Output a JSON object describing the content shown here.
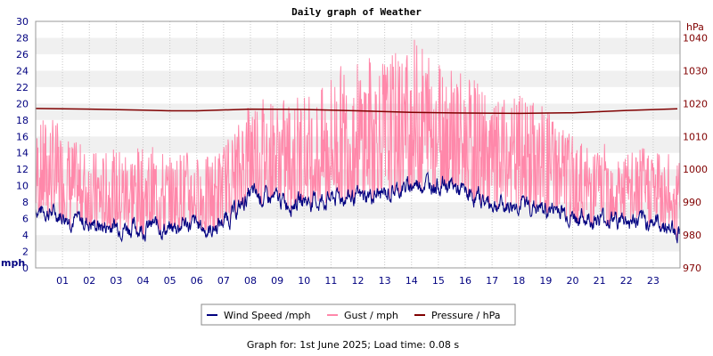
{
  "chart_data": {
    "type": "line",
    "title": "Daily graph of Weather",
    "footer": "Graph for: 1st June 2025; Load time: 0.08 s",
    "left_unit": "mph",
    "right_unit": "hPa",
    "xlim": [
      0,
      24
    ],
    "x_tick_labels": [
      "01",
      "02",
      "03",
      "04",
      "05",
      "06",
      "07",
      "08",
      "09",
      "10",
      "11",
      "12",
      "13",
      "14",
      "15",
      "16",
      "17",
      "18",
      "19",
      "20",
      "21",
      "22",
      "23"
    ],
    "ylim_left": [
      0,
      30
    ],
    "y_left_ticks": [
      0,
      2,
      4,
      6,
      8,
      10,
      12,
      14,
      16,
      18,
      20,
      22,
      24,
      26,
      28,
      30
    ],
    "ylim_right": [
      970,
      1045
    ],
    "y_right_ticks": [
      970,
      980,
      990,
      1000,
      1010,
      1020,
      1030,
      1040
    ],
    "grid": true,
    "legend_position": "bottom",
    "colors": {
      "wind": "#000080",
      "gust": "#ff88aa",
      "pressure": "#800000",
      "band": "#f0f0f0"
    },
    "series": [
      {
        "name": "Wind Speed /mph",
        "axis": "left",
        "x": [
          0,
          0.5,
          1,
          1.5,
          2,
          2.5,
          3,
          3.5,
          4,
          4.5,
          5,
          5.5,
          6,
          6.5,
          7,
          7.5,
          8,
          8.5,
          9,
          9.5,
          10,
          10.5,
          11,
          11.5,
          12,
          12.5,
          13,
          13.5,
          14,
          14.5,
          15,
          15.5,
          16,
          16.5,
          17,
          17.5,
          18,
          18.5,
          19,
          19.5,
          20,
          20.5,
          21,
          21.5,
          22,
          22.5,
          23,
          23.5,
          23.9
        ],
        "values": [
          7.2,
          6.8,
          6.5,
          5.8,
          5.5,
          5.0,
          5.2,
          5.0,
          4.8,
          5.2,
          4.5,
          5.5,
          5.2,
          4.5,
          5.8,
          7.0,
          9.0,
          8.5,
          8.3,
          8.0,
          8.3,
          8.0,
          8.5,
          8.7,
          8.5,
          8.8,
          9.0,
          9.5,
          10.0,
          10.5,
          10.2,
          10.0,
          9.0,
          8.5,
          7.8,
          7.5,
          7.8,
          7.5,
          7.0,
          7.2,
          6.2,
          6.0,
          6.0,
          6.0,
          5.8,
          5.5,
          5.8,
          5.0,
          4.5
        ]
      },
      {
        "name": "Gust / mph",
        "axis": "left",
        "x": [
          0,
          0.5,
          1,
          1.5,
          2,
          2.5,
          3,
          3.5,
          4,
          4.5,
          5,
          5.5,
          6,
          6.5,
          7,
          7.5,
          8,
          8.5,
          9,
          9.5,
          10,
          10.5,
          11,
          11.5,
          12,
          12.5,
          13,
          13.5,
          14,
          14.5,
          15,
          15.5,
          16,
          16.5,
          17,
          17.5,
          18,
          18.5,
          19,
          19.5,
          20,
          20.5,
          21,
          21.5,
          22,
          22.5,
          23,
          23.5,
          23.9
        ],
        "values": [
          11.0,
          11.5,
          10.5,
          9.5,
          9.0,
          8.5,
          8.8,
          9.0,
          8.5,
          9.0,
          8.0,
          9.0,
          8.5,
          8.0,
          9.5,
          11.0,
          14.0,
          13.5,
          13.0,
          13.0,
          13.5,
          13.0,
          14.5,
          15.0,
          15.0,
          15.5,
          15.5,
          16.0,
          17.0,
          17.0,
          16.5,
          16.0,
          14.5,
          14.0,
          12.5,
          12.5,
          13.0,
          12.5,
          12.0,
          11.5,
          10.0,
          9.5,
          9.5,
          9.5,
          9.0,
          9.0,
          9.5,
          8.5,
          8.0
        ]
      },
      {
        "name": "Pressure / hPa",
        "axis": "right",
        "x": [
          0,
          2,
          4,
          5,
          6,
          8,
          10,
          12,
          14,
          16,
          18,
          20,
          22,
          23.9
        ],
        "values": [
          1018.5,
          1018.3,
          1018.0,
          1017.8,
          1017.8,
          1018.3,
          1018.2,
          1017.8,
          1017.3,
          1017.1,
          1017.0,
          1017.2,
          1017.9,
          1018.4
        ]
      }
    ]
  }
}
